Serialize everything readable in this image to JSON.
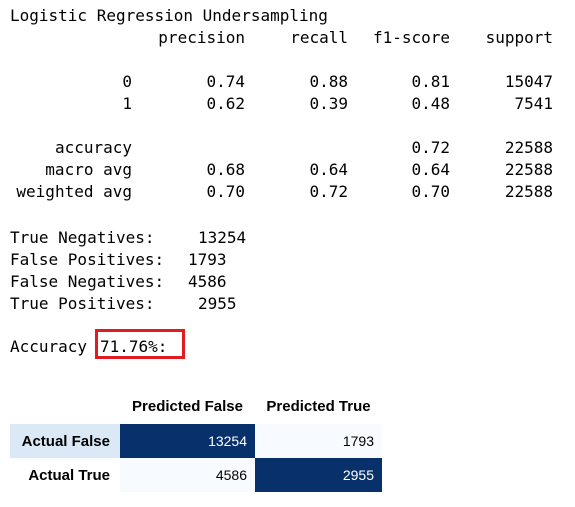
{
  "report": {
    "title": "Logistic Regression Undersampling",
    "headers": [
      "precision",
      "recall",
      "f1-score",
      "support"
    ],
    "rows": [
      {
        "label": "0",
        "precision": "0.74",
        "recall": "0.88",
        "f1": "0.81",
        "support": "15047"
      },
      {
        "label": "1",
        "precision": "0.62",
        "recall": "0.39",
        "f1": "0.48",
        "support": "7541"
      }
    ],
    "summary": [
      {
        "label": "accuracy",
        "precision": "",
        "recall": "",
        "f1": "0.72",
        "support": "22588"
      },
      {
        "label": "macro avg",
        "precision": "0.68",
        "recall": "0.64",
        "f1": "0.64",
        "support": "22588"
      },
      {
        "label": "weighted avg",
        "precision": "0.70",
        "recall": "0.72",
        "f1": "0.70",
        "support": "22588"
      }
    ]
  },
  "counts": [
    {
      "label": "True Negatives:",
      "value": "13254"
    },
    {
      "label": "False Positives:",
      "value": "1793"
    },
    {
      "label": "False Negatives:",
      "value": "4586"
    },
    {
      "label": "True Positives:",
      "value": "2955"
    }
  ],
  "accuracy": {
    "label": "Accuracy",
    "value": "71.76%:",
    "highlight_color": "#e11b22"
  },
  "confusion_matrix": {
    "col_headers": [
      "Predicted False",
      "Predicted True"
    ],
    "rows": [
      {
        "label": "Actual False",
        "values": [
          "13254",
          "1793"
        ]
      },
      {
        "label": "Actual True",
        "values": [
          "4586",
          "2955"
        ]
      }
    ],
    "colors": {
      "dark": "#08306b",
      "light": "#f7fbff",
      "row_header_highlight": "#dbe9f6"
    }
  }
}
